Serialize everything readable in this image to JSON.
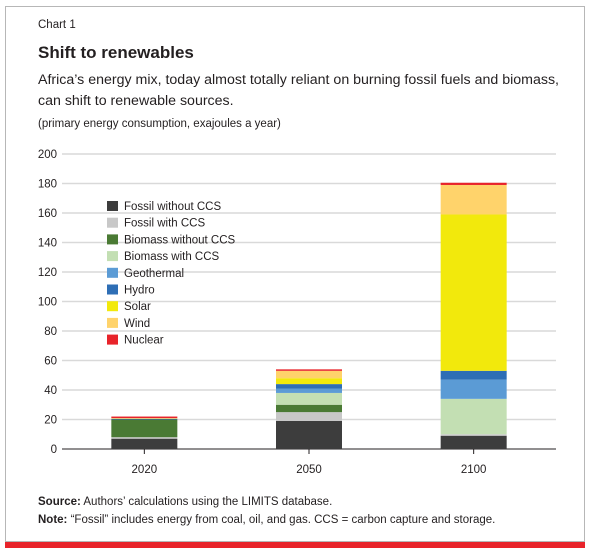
{
  "header": {
    "chart_number": "Chart 1",
    "title": "Shift to renewables",
    "subtitle": "Africa’s energy mix, today almost totally reliant on burning fossil fuels and biomass, can shift to renewable sources.",
    "units": "(primary energy consumption, exajoules a year)"
  },
  "footer": {
    "source_label": "Source:",
    "source_text": " Authors’ calculations using the LIMITS database.",
    "note_label": "Note:",
    "note_text": " “Fossil” includes energy from coal, oil, and gas. CCS = carbon capture and storage."
  },
  "colors": {
    "bottom_rule": "#e8232a",
    "gridline": "#d9d9d9",
    "axis": "#231f20"
  },
  "chart_data": {
    "type": "bar",
    "stacked": true,
    "categories": [
      "2020",
      "2050",
      "2100"
    ],
    "ylim": [
      0,
      200
    ],
    "yticks": [
      0,
      20,
      40,
      60,
      80,
      100,
      120,
      140,
      160,
      180,
      200
    ],
    "grid": true,
    "legend_position": "top-left",
    "xlabel": "",
    "ylabel": "",
    "series": [
      {
        "name": "Fossil without CCS",
        "color": "#3d3d3d",
        "values": [
          7,
          19,
          9
        ]
      },
      {
        "name": "Fossil with CCS",
        "color": "#c8c8c8",
        "values": [
          1,
          6,
          1
        ]
      },
      {
        "name": "Biomass without CCS",
        "color": "#4a7a34",
        "values": [
          12,
          5,
          0
        ]
      },
      {
        "name": "Biomass with CCS",
        "color": "#c3dfb3",
        "values": [
          0,
          8,
          24
        ]
      },
      {
        "name": "Geothermal",
        "color": "#5b9bd5",
        "values": [
          0,
          3,
          13
        ]
      },
      {
        "name": "Hydro",
        "color": "#2e6eb5",
        "values": [
          0.5,
          3,
          6
        ]
      },
      {
        "name": "Solar",
        "color": "#f2e90c",
        "values": [
          0,
          4,
          106
        ]
      },
      {
        "name": "Wind",
        "color": "#ffd36b",
        "values": [
          0.5,
          5,
          20
        ]
      },
      {
        "name": "Nuclear",
        "color": "#e8232a",
        "values": [
          1,
          1,
          1.5
        ]
      }
    ]
  }
}
